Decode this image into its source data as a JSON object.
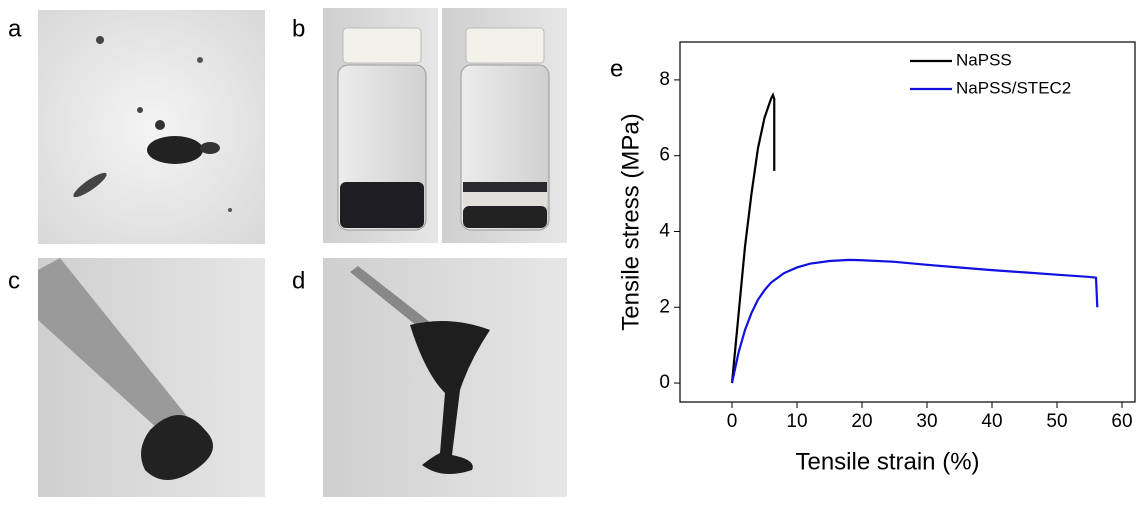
{
  "panels": {
    "a": "a",
    "b": "b",
    "c": "c",
    "d": "d",
    "e": "e"
  },
  "chart_data": {
    "type": "line",
    "xlabel": "Tensile strain (%)",
    "ylabel": "Tensile stress (MPa)",
    "xlim": [
      -8,
      62
    ],
    "ylim": [
      -0.5,
      9
    ],
    "xticks": [
      0,
      10,
      20,
      30,
      40,
      50,
      60
    ],
    "yticks": [
      0,
      2,
      4,
      6,
      8
    ],
    "legend": "upper right",
    "series": [
      {
        "name": "NaPSS",
        "color": "#000000",
        "x": [
          0,
          1,
          2,
          3,
          4,
          5,
          6,
          6.3,
          6.5,
          6.5
        ],
        "values": [
          0,
          1.8,
          3.6,
          5,
          6.2,
          7,
          7.5,
          7.6,
          7.5,
          5.6
        ]
      },
      {
        "name": "NaPSS/STEC2",
        "color": "#1010e0",
        "x": [
          0,
          1,
          2,
          3,
          4,
          5,
          6,
          8,
          10,
          12,
          15,
          18,
          20,
          25,
          30,
          35,
          40,
          45,
          50,
          55,
          56,
          56.2
        ],
        "values": [
          0,
          0.8,
          1.4,
          1.85,
          2.2,
          2.45,
          2.65,
          2.9,
          3.05,
          3.15,
          3.22,
          3.25,
          3.24,
          3.2,
          3.12,
          3.05,
          2.98,
          2.92,
          2.86,
          2.8,
          2.78,
          2.0
        ]
      }
    ]
  }
}
